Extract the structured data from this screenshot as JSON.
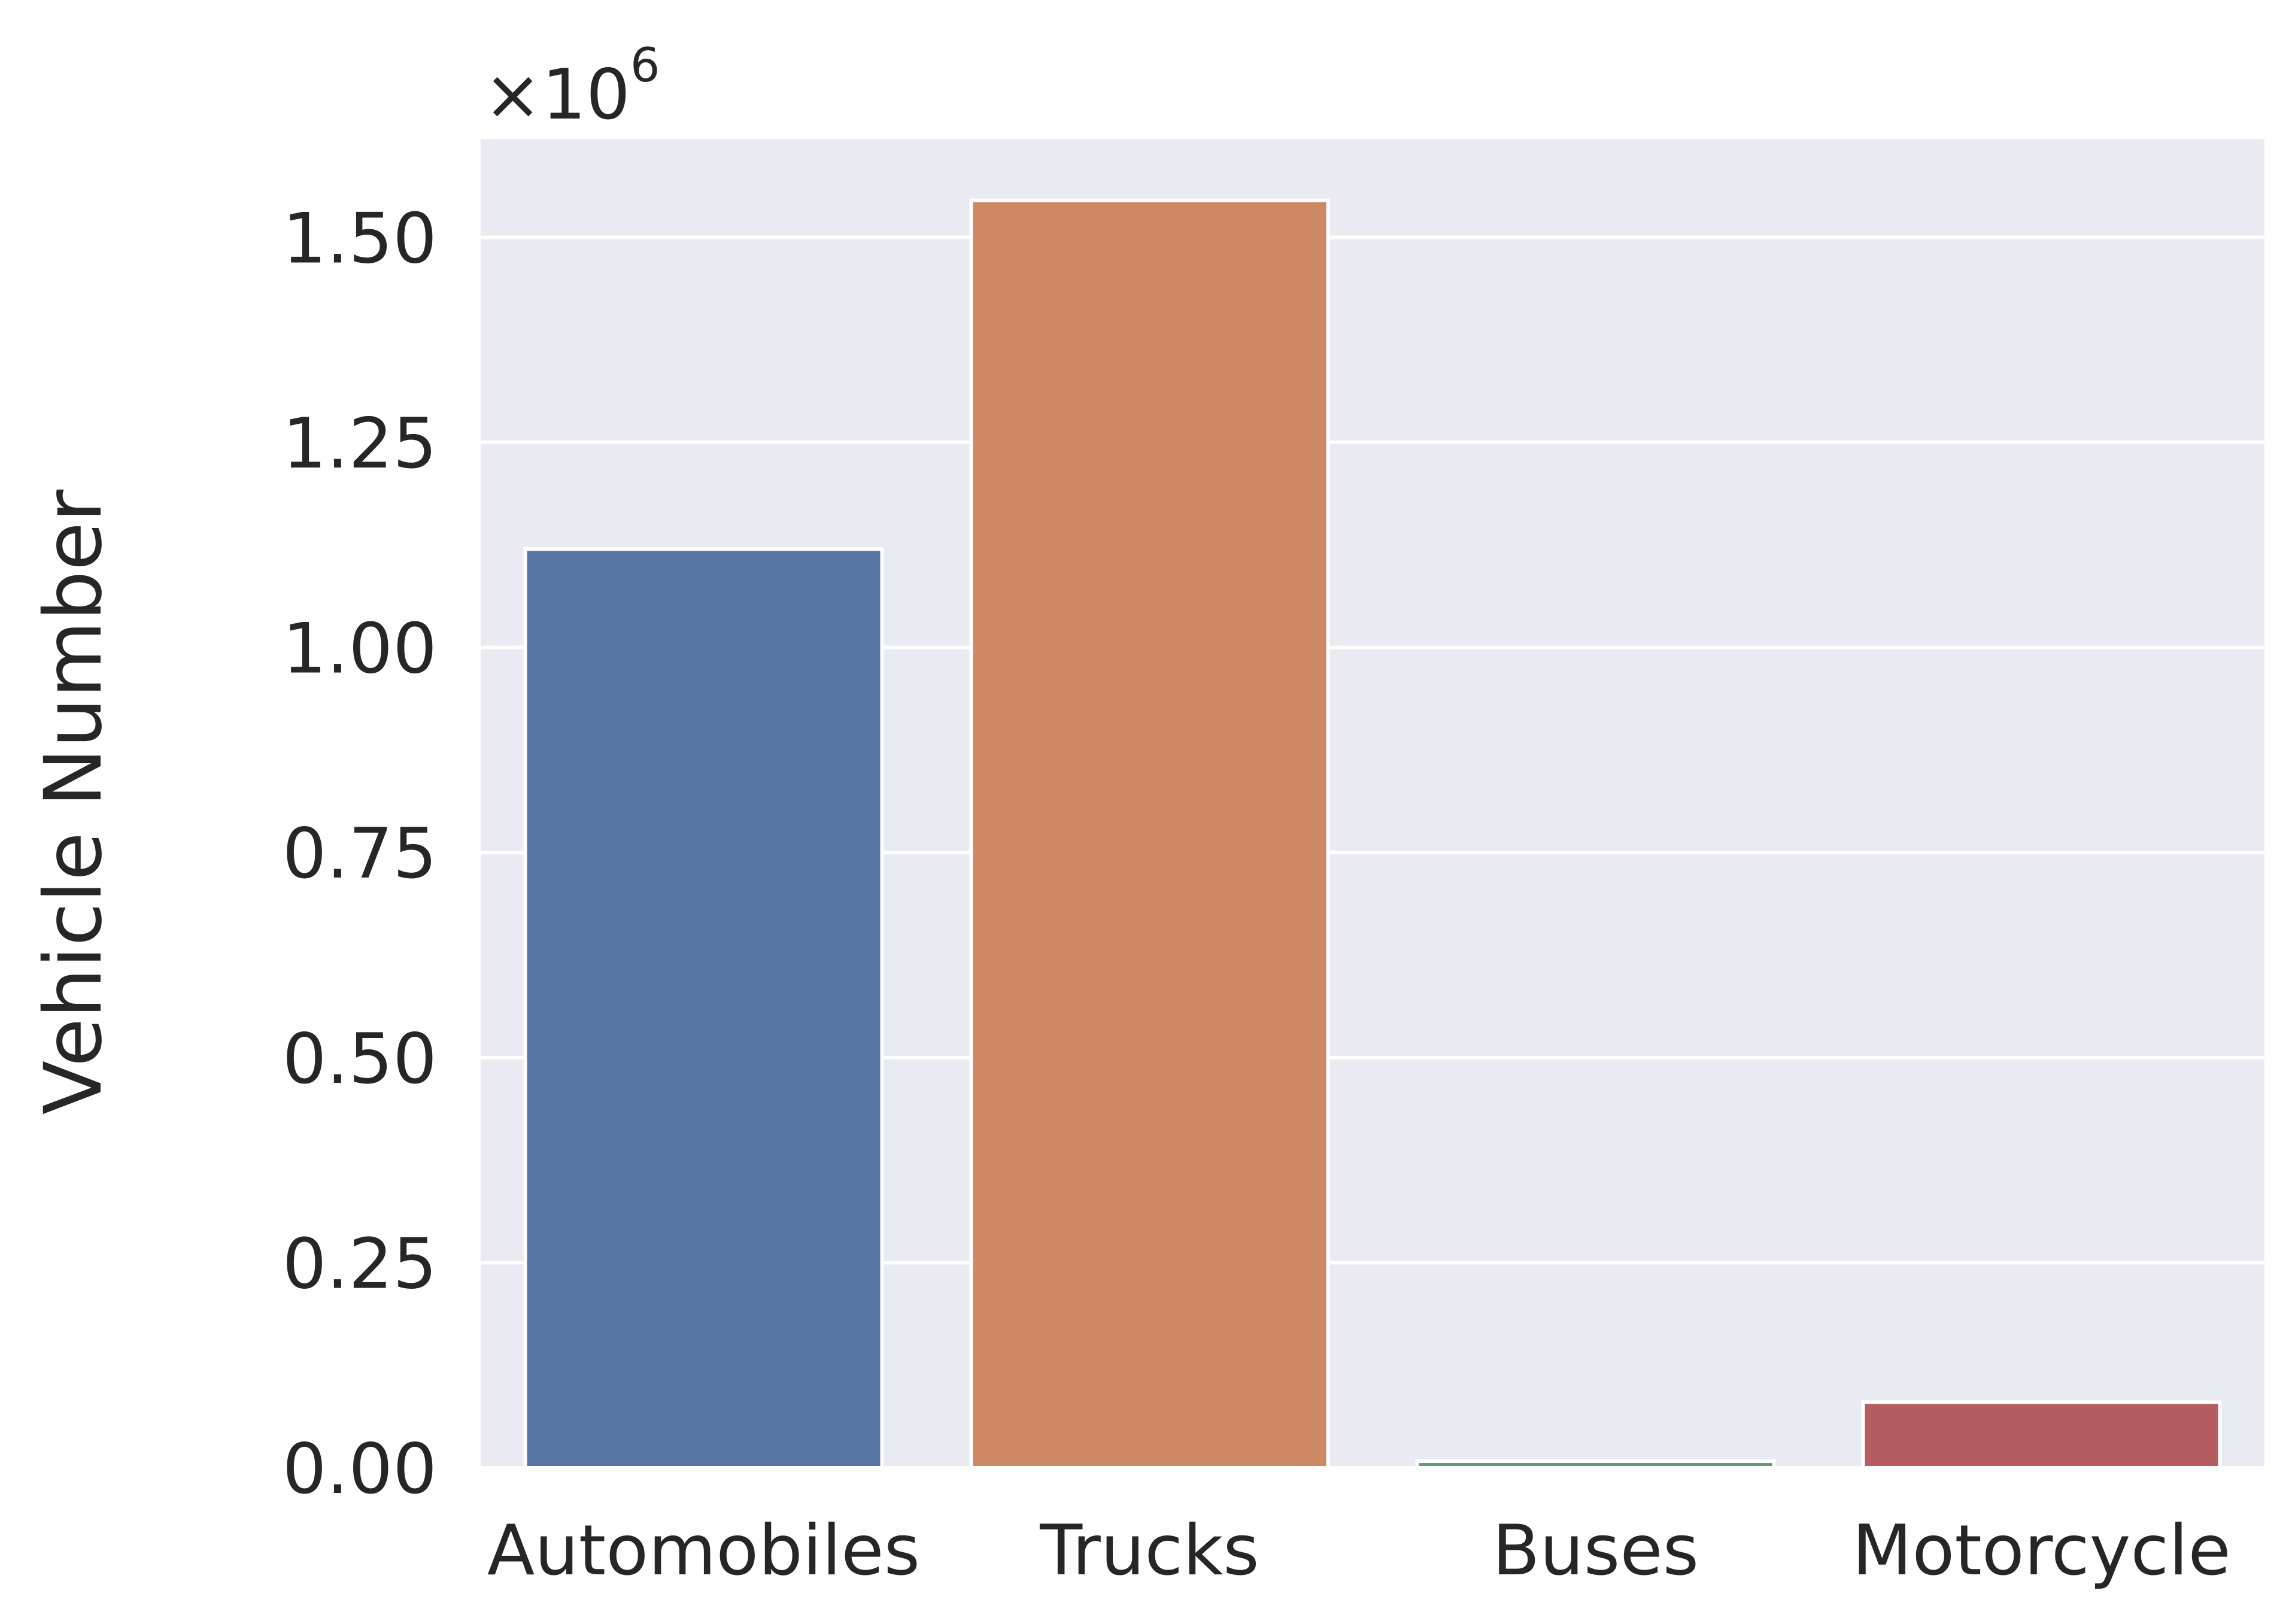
{
  "chart_data": {
    "type": "bar",
    "categories": [
      "Automobiles",
      "Trucks",
      "Buses",
      "Motorcycle"
    ],
    "values": [
      1120000,
      1545000,
      8000,
      80000
    ],
    "title": "",
    "xlabel": "",
    "ylabel": "Vehicle Number",
    "ylim": [
      0,
      1620000
    ],
    "yticks": [
      0,
      250000,
      500000,
      750000,
      1000000,
      1250000,
      1500000
    ],
    "ytick_labels": [
      "0.00",
      "0.25",
      "0.50",
      "0.75",
      "1.00",
      "1.25",
      "1.50"
    ],
    "y_multiplier": {
      "base": "×10",
      "exponent": "6"
    },
    "grid": true,
    "legend": "none",
    "colors": [
      "#5975a4",
      "#cc8963",
      "#5f9e6e",
      "#b55d60"
    ],
    "background_color": "#eaeaf2",
    "grid_color": "#ffffff",
    "edge_color": "#ffffff"
  }
}
